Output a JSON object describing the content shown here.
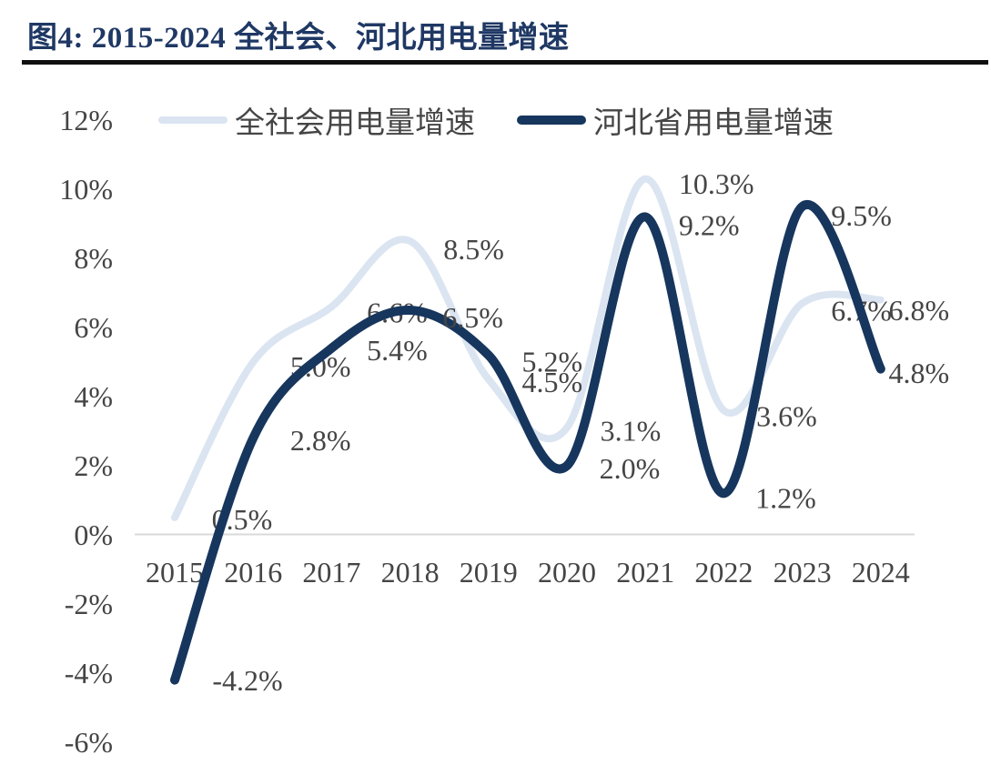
{
  "figure": {
    "title": "图4: 2015-2024 全社会、河北用电量增速"
  },
  "chart_data": {
    "type": "line",
    "title": "图4: 2015-2024 全社会、河北用电量增速",
    "categories": [
      "2015",
      "2016",
      "2017",
      "2018",
      "2019",
      "2020",
      "2021",
      "2022",
      "2023",
      "2024"
    ],
    "series": [
      {
        "name": "全社会用电量增速",
        "color": "#dbe5f1",
        "line_width": 8,
        "values": [
          0.5,
          5.0,
          6.6,
          8.5,
          4.5,
          3.1,
          10.3,
          3.6,
          6.7,
          6.8
        ],
        "point_labels": [
          "0.5%",
          "5.0%",
          "6.6%",
          "8.5%",
          "4.5%",
          "3.1%",
          "10.3%",
          "3.6%",
          "6.7%",
          "6.8%"
        ],
        "label_offsets": [
          [
            74,
            2
          ],
          [
            74,
            5
          ],
          [
            72,
            6
          ],
          [
            70,
            9
          ],
          [
            70,
            3
          ],
          [
            70,
            3
          ],
          [
            78,
            5
          ],
          [
            69,
            6
          ],
          [
            65,
            8
          ],
          [
            42,
            11
          ]
        ]
      },
      {
        "name": "河北省用电量增速",
        "color": "#17365d",
        "line_width": 10,
        "values": [
          -4.2,
          2.8,
          5.4,
          6.5,
          5.2,
          2.0,
          9.2,
          1.2,
          9.5,
          4.8
        ],
        "point_labels": [
          "-4.2%",
          "2.8%",
          "5.4%",
          "6.5%",
          "5.2%",
          "2.0%",
          "9.2%",
          "1.2%",
          "9.5%",
          "4.8%"
        ],
        "label_offsets": [
          [
            80,
            0
          ],
          [
            74,
            2
          ],
          [
            72,
            2
          ],
          [
            69,
            8
          ],
          [
            70,
            7
          ],
          [
            69,
            3
          ],
          [
            70,
            9
          ],
          [
            68,
            5
          ],
          [
            65,
            10
          ],
          [
            42,
            4
          ]
        ]
      }
    ],
    "yticks": [
      12,
      10,
      8,
      6,
      4,
      2,
      0,
      -2,
      -4,
      -6
    ],
    "ytick_labels": [
      "12%",
      "10%",
      "8%",
      "6%",
      "4%",
      "2%",
      "0%",
      "-2%",
      "-4%",
      "-6%"
    ],
    "ylim": [
      -6,
      12
    ],
    "grid": false,
    "legend_position": "top",
    "colors": {
      "title": "#1f3864",
      "label_text": "#454545",
      "axis_line": "#d9d9d9",
      "divider": "#101010"
    }
  }
}
